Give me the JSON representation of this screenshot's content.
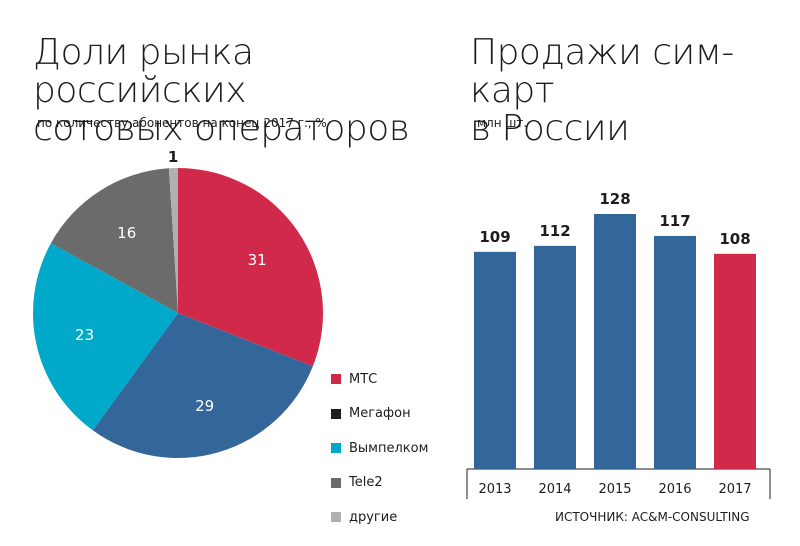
{
  "left_title": "Доли рынка российских\nсотовых операторов",
  "left_subtitle": "по количеству абонентов на конец 2017 г., %",
  "right_title": "Продажи сим-карт\nв России",
  "right_subtitle": "млн шт.",
  "source": "ИСТОЧНИК: AC&M-CONSULTING",
  "chart_data": [
    {
      "type": "pie",
      "slices": [
        {
          "label": "МТС",
          "value": 31,
          "color": "#d1294a"
        },
        {
          "label": "Мегафон",
          "value": 29,
          "color": "#336699"
        },
        {
          "label": "Вымпелком",
          "value": 23,
          "color": "#00a9c9"
        },
        {
          "label": "Tele2",
          "value": 16,
          "color": "#6b6b6b"
        },
        {
          "label": "другие",
          "value": 1,
          "color": "#b0b0b0"
        }
      ],
      "legend": [
        {
          "label": "МТС",
          "color": "#d1294a"
        },
        {
          "label": "Мегафон",
          "color": "#1d1d1b"
        },
        {
          "label": "Вымпелком",
          "color": "#00a9c9"
        },
        {
          "label": "Tele2",
          "color": "#6b6b6b"
        },
        {
          "label": "другие",
          "color": "#b0b0b0"
        }
      ]
    },
    {
      "type": "bar",
      "categories": [
        "2013",
        "2014",
        "2015",
        "2016",
        "2017"
      ],
      "values": [
        109,
        112,
        128,
        117,
        108
      ],
      "colors": [
        "#336699",
        "#336699",
        "#336699",
        "#336699",
        "#d1294a"
      ],
      "ylim": [
        0,
        128
      ]
    }
  ]
}
